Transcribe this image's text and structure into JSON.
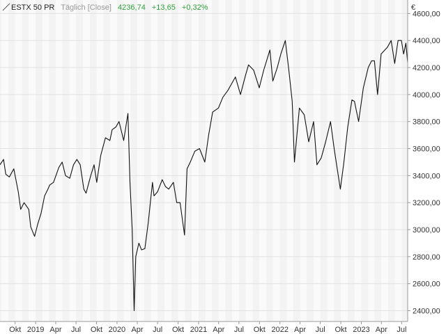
{
  "header": {
    "name": "ESTX 50 PR",
    "mode": "Täglich [Close]",
    "last": "4236,74",
    "change": "+13,65",
    "change_pct": "+0,32%",
    "change_color": "#2e9e3a"
  },
  "chart_data": {
    "type": "line",
    "title": "ESTX 50 PR",
    "currency": "€",
    "ylim": [
      2320,
      4700
    ],
    "yticks": [
      2400,
      2600,
      2800,
      3000,
      3200,
      3400,
      3600,
      3800,
      4000,
      4200,
      4400,
      4600
    ],
    "ytick_labels": [
      "2400,00",
      "2600,00",
      "2800,00",
      "3000,00",
      "3200,00",
      "3400,00",
      "3600,00",
      "3800,00",
      "4000,00",
      "4200,00",
      "4400,00",
      "4600,00"
    ],
    "xlim": [
      "2018-07-25",
      "2023-07-28"
    ],
    "xticks": [
      {
        "label": "Okt",
        "date": "2018-10-01"
      },
      {
        "label": "2019",
        "date": "2019-01-01"
      },
      {
        "label": "Apr",
        "date": "2019-04-01"
      },
      {
        "label": "Jul",
        "date": "2019-07-01"
      },
      {
        "label": "Okt",
        "date": "2019-10-01"
      },
      {
        "label": "2020",
        "date": "2020-01-01"
      },
      {
        "label": "Apr",
        "date": "2020-04-01"
      },
      {
        "label": "Jul",
        "date": "2020-07-01"
      },
      {
        "label": "Okt",
        "date": "2020-10-01"
      },
      {
        "label": "2021",
        "date": "2021-01-01"
      },
      {
        "label": "Apr",
        "date": "2021-04-01"
      },
      {
        "label": "Jul",
        "date": "2021-07-01"
      },
      {
        "label": "Okt",
        "date": "2021-10-01"
      },
      {
        "label": "2022",
        "date": "2022-01-01"
      },
      {
        "label": "Apr",
        "date": "2022-04-01"
      },
      {
        "label": "Jul",
        "date": "2022-07-01"
      },
      {
        "label": "Okt",
        "date": "2022-10-01"
      },
      {
        "label": "2023",
        "date": "2023-01-01"
      },
      {
        "label": "Apr",
        "date": "2023-04-01"
      },
      {
        "label": "Jul",
        "date": "2023-07-01"
      }
    ],
    "grid": true,
    "line_color": "#111111",
    "series": [
      {
        "x": [
          "2018-07-25",
          "2018-08-10",
          "2018-08-20",
          "2018-09-05",
          "2018-09-25",
          "2018-10-15",
          "2018-10-26",
          "2018-11-10",
          "2018-12-01",
          "2018-12-10",
          "2018-12-27",
          "2019-01-10",
          "2019-01-25",
          "2019-02-10",
          "2019-02-25",
          "2019-03-05",
          "2019-03-22",
          "2019-04-15",
          "2019-04-30",
          "2019-05-15",
          "2019-06-03",
          "2019-06-20",
          "2019-07-05",
          "2019-07-20",
          "2019-08-05",
          "2019-08-15",
          "2019-09-05",
          "2019-09-20",
          "2019-10-02",
          "2019-10-20",
          "2019-11-10",
          "2019-11-30",
          "2019-12-10",
          "2019-12-27",
          "2020-01-10",
          "2020-01-31",
          "2020-02-19",
          "2020-02-28",
          "2020-03-09",
          "2020-03-18",
          "2020-03-25",
          "2020-04-08",
          "2020-04-20",
          "2020-05-05",
          "2020-05-20",
          "2020-06-08",
          "2020-06-15",
          "2020-07-01",
          "2020-07-22",
          "2020-08-05",
          "2020-08-20",
          "2020-09-10",
          "2020-09-25",
          "2020-10-10",
          "2020-10-30",
          "2020-11-10",
          "2020-11-25",
          "2020-12-15",
          "2021-01-05",
          "2021-01-29",
          "2021-02-15",
          "2021-03-05",
          "2021-03-31",
          "2021-04-20",
          "2021-05-12",
          "2021-06-15",
          "2021-07-08",
          "2021-07-30",
          "2021-08-13",
          "2021-09-05",
          "2021-09-30",
          "2021-10-20",
          "2021-11-17",
          "2021-11-30",
          "2021-12-20",
          "2022-01-05",
          "2022-01-25",
          "2022-02-10",
          "2022-02-25",
          "2022-03-07",
          "2022-03-29",
          "2022-04-20",
          "2022-05-10",
          "2022-06-01",
          "2022-06-16",
          "2022-07-05",
          "2022-07-25",
          "2022-08-16",
          "2022-09-01",
          "2022-09-15",
          "2022-09-29",
          "2022-10-15",
          "2022-11-01",
          "2022-11-20",
          "2022-12-01",
          "2022-12-20",
          "2023-01-10",
          "2023-02-01",
          "2023-02-16",
          "2023-03-01",
          "2023-03-15",
          "2023-03-31",
          "2023-04-28",
          "2023-05-15",
          "2023-05-31",
          "2023-06-15",
          "2023-06-30",
          "2023-07-10",
          "2023-07-20",
          "2023-07-28"
        ],
        "y": [
          3480,
          3520,
          3410,
          3390,
          3450,
          3280,
          3150,
          3200,
          3150,
          3020,
          2950,
          3040,
          3120,
          3250,
          3300,
          3330,
          3350,
          3460,
          3500,
          3400,
          3380,
          3480,
          3520,
          3480,
          3300,
          3270,
          3400,
          3480,
          3350,
          3550,
          3680,
          3660,
          3740,
          3760,
          3800,
          3660,
          3860,
          3350,
          3000,
          2400,
          2800,
          2900,
          2850,
          2860,
          3050,
          3350,
          3250,
          3280,
          3370,
          3320,
          3300,
          3350,
          3200,
          3200,
          2960,
          3450,
          3500,
          3580,
          3600,
          3500,
          3700,
          3870,
          3900,
          3980,
          4030,
          4130,
          4000,
          4140,
          4220,
          4180,
          4050,
          4180,
          4330,
          4100,
          4200,
          4300,
          4400,
          4180,
          3950,
          3500,
          3900,
          3850,
          3650,
          3800,
          3480,
          3530,
          3650,
          3800,
          3600,
          3450,
          3300,
          3500,
          3760,
          3960,
          3950,
          3800,
          4050,
          4200,
          4250,
          4250,
          4000,
          4300,
          4350,
          4400,
          4230,
          4400,
          4400,
          4300,
          4380,
          4236.74
        ]
      }
    ]
  }
}
